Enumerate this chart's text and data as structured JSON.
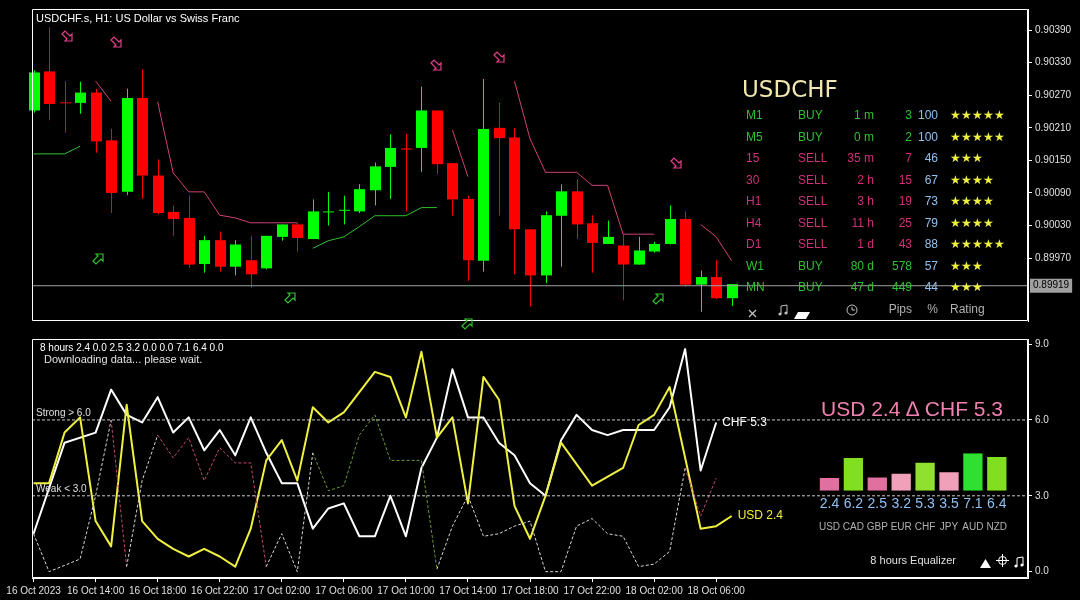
{
  "chart_data": [
    {
      "type": "candlestick",
      "title": "USDCHF.s, H1:  US Dollar vs Swiss Franc",
      "x": [
        "2023-10-16T10:00",
        "2023-10-16T11:00",
        "2023-10-16T12:00",
        "2023-10-16T13:00",
        "2023-10-16T14:00",
        "2023-10-16T15:00",
        "2023-10-16T16:00",
        "2023-10-16T17:00",
        "2023-10-16T18:00",
        "2023-10-16T19:00",
        "2023-10-16T20:00",
        "2023-10-16T21:00",
        "2023-10-16T22:00",
        "2023-10-16T23:00",
        "2023-10-17T00:00",
        "2023-10-17T01:00",
        "2023-10-17T02:00",
        "2023-10-17T03:00",
        "2023-10-17T04:00",
        "2023-10-17T05:00",
        "2023-10-17T06:00",
        "2023-10-17T07:00",
        "2023-10-17T08:00",
        "2023-10-17T09:00",
        "2023-10-17T10:00",
        "2023-10-17T11:00",
        "2023-10-17T12:00",
        "2023-10-17T13:00",
        "2023-10-17T14:00",
        "2023-10-17T15:00",
        "2023-10-17T16:00",
        "2023-10-17T17:00",
        "2023-10-17T18:00",
        "2023-10-17T19:00",
        "2023-10-17T20:00",
        "2023-10-17T21:00",
        "2023-10-17T22:00",
        "2023-10-17T23:00",
        "2023-10-18T00:00",
        "2023-10-18T01:00",
        "2023-10-18T02:00",
        "2023-10-18T03:00",
        "2023-10-18T04:00",
        "2023-10-18T05:00",
        "2023-10-18T06:00",
        "2023-10-18T07:00"
      ],
      "ohlc": [
        [
          0.90242,
          0.90316,
          0.90238,
          0.90312
        ],
        [
          0.90314,
          0.90395,
          0.90224,
          0.90254
        ],
        [
          0.90257,
          0.90296,
          0.90201,
          0.90256
        ],
        [
          0.90256,
          0.90295,
          0.90236,
          0.90275
        ],
        [
          0.90275,
          0.90282,
          0.90164,
          0.90185
        ],
        [
          0.90187,
          0.90208,
          0.90053,
          0.9009
        ],
        [
          0.90092,
          0.90282,
          0.90086,
          0.90265
        ],
        [
          0.90265,
          0.90318,
          0.90079,
          0.90122
        ],
        [
          0.90122,
          0.90152,
          0.90051,
          0.90053
        ],
        [
          0.90055,
          0.90067,
          0.90011,
          0.90042
        ],
        [
          0.90044,
          0.90085,
          0.89952,
          0.89958
        ],
        [
          0.89959,
          0.90011,
          0.89943,
          0.90003
        ],
        [
          0.90003,
          0.90019,
          0.89945,
          0.89954
        ],
        [
          0.89954,
          0.90003,
          0.89938,
          0.89995
        ],
        [
          0.89966,
          0.90011,
          0.89915,
          0.8994
        ],
        [
          0.89951,
          0.90011,
          0.89949,
          0.90011
        ],
        [
          0.90009,
          0.90032,
          0.90002,
          0.90032
        ],
        [
          0.90032,
          0.90035,
          0.89982,
          0.90007
        ],
        [
          0.90005,
          0.90078,
          0.90005,
          0.90056
        ],
        [
          0.90056,
          0.90092,
          0.9003,
          0.90056
        ],
        [
          0.90058,
          0.90085,
          0.90032,
          0.90059
        ],
        [
          0.90056,
          0.90106,
          0.90053,
          0.90097
        ],
        [
          0.90095,
          0.90146,
          0.90067,
          0.90139
        ],
        [
          0.90138,
          0.90198,
          0.90079,
          0.90173
        ],
        [
          0.90172,
          0.90199,
          0.90056,
          0.9017
        ],
        [
          0.90173,
          0.90286,
          0.90129,
          0.90242
        ],
        [
          0.90242,
          0.90242,
          0.90125,
          0.90143
        ],
        [
          0.90145,
          0.90145,
          0.90048,
          0.90078
        ],
        [
          0.90079,
          0.90085,
          0.89928,
          0.89966
        ],
        [
          0.89965,
          0.903,
          0.89945,
          0.90208
        ],
        [
          0.9021,
          0.90256,
          0.90048,
          0.90191
        ],
        [
          0.90192,
          0.9021,
          0.8994,
          0.90023
        ],
        [
          0.90023,
          0.90023,
          0.8988,
          0.89938
        ],
        [
          0.89938,
          0.90056,
          0.89924,
          0.90049
        ],
        [
          0.90048,
          0.90106,
          0.89954,
          0.90093
        ],
        [
          0.90093,
          0.90115,
          0.90005,
          0.90032
        ],
        [
          0.90034,
          0.90049,
          0.89943,
          0.89998
        ],
        [
          0.89996,
          0.90039,
          0.89996,
          0.90009
        ],
        [
          0.89993,
          0.90016,
          0.89892,
          0.89958
        ],
        [
          0.89958,
          0.90009,
          0.89958,
          0.89984
        ],
        [
          0.89982,
          0.9,
          0.8998,
          0.89996
        ],
        [
          0.89996,
          0.90067,
          0.89995,
          0.90042
        ],
        [
          0.90042,
          0.90056,
          0.89917,
          0.89921
        ],
        [
          0.89921,
          0.89947,
          0.89871,
          0.89935
        ],
        [
          0.89935,
          0.89966,
          0.89894,
          0.89896
        ],
        [
          0.89896,
          0.89922,
          0.89882,
          0.89922
        ]
      ],
      "series": [
        {
          "type": "line",
          "color": "#d0407a",
          "x": [
            "2023-10-16T14:00",
            "2023-10-16T15:00",
            "2023-10-16T15:30",
            "2023-10-16T17:00",
            "2023-10-16T18:00",
            "2023-10-16T19:00",
            "2023-10-16T20:00",
            "2023-10-16T21:00",
            "2023-10-16T22:00",
            "2023-10-16T23:00",
            "2023-10-17T00:00",
            "2023-10-17T01:00",
            "2023-10-17T02:00",
            "2023-10-17T03:00",
            "2023-10-17T03:30",
            "2023-10-17T13:00",
            "2023-10-17T14:00",
            "2023-10-17T14:30",
            "2023-10-17T17:00",
            "2023-10-17T18:00",
            "2023-10-17T19:00",
            "2023-10-17T20:00",
            "2023-10-17T21:00",
            "2023-10-17T22:00",
            "2023-10-17T23:00",
            "2023-10-18T00:00",
            "2023-10-18T01:00",
            "2023-10-18T02:00",
            "2023-10-18T03:00",
            "2023-10-18T04:00",
            "2023-10-18T05:00",
            "2023-10-18T06:00",
            "2023-10-18T07:00"
          ],
          "values": [
            0.90296,
            0.90259,
            null,
            null,
            0.90258,
            0.90127,
            0.90092,
            0.90092,
            0.90049,
            0.90044,
            0.90035,
            0.90035,
            0.90035,
            0.90035,
            null,
            0.90206,
            0.9012,
            null,
            0.90296,
            0.9019,
            0.90128,
            0.90128,
            0.90128,
            0.90104,
            0.90104,
            0.90014,
            0.90014,
            0.90014,
            null,
            null,
            0.90032,
            0.90009,
            0.89965
          ]
        },
        {
          "type": "line",
          "color": "#30c030",
          "x": [
            "2023-10-16T10:00",
            "2023-10-16T11:00",
            "2023-10-16T12:00",
            "2023-10-16T13:00",
            "2023-10-16T13:30",
            "2023-10-17T04:00",
            "2023-10-17T05:00",
            "2023-10-17T06:00",
            "2023-10-17T07:00",
            "2023-10-17T08:00",
            "2023-10-17T09:00",
            "2023-10-17T10:00",
            "2023-10-17T11:00",
            "2023-10-17T12:00"
          ],
          "values": [
            0.90162,
            0.90162,
            0.90162,
            0.90176,
            null,
            0.89988,
            0.90002,
            0.90009,
            0.90028,
            0.90048,
            0.90048,
            0.90048,
            0.90063,
            0.90063
          ]
        }
      ],
      "xlim": [
        "2023-10-16T09:54",
        "2023-10-19T02:06"
      ],
      "ylim": [
        0.89854,
        0.90429
      ],
      "yticks": [
        {
          "value": 0.9039,
          "label": "0.90390"
        },
        {
          "value": 0.9033,
          "label": "0.90330"
        },
        {
          "value": 0.9027,
          "label": "0.90270"
        },
        {
          "value": 0.9021,
          "label": "0.90210"
        },
        {
          "value": 0.9015,
          "label": "0.90150"
        },
        {
          "value": 0.9009,
          "label": "0.90090"
        },
        {
          "value": 0.9003,
          "label": "0.90030"
        },
        {
          "value": 0.8997,
          "label": "0.89970"
        }
      ],
      "ref_lines": [
        {
          "axis": "y",
          "value": 0.89919,
          "label": "0.89919",
          "color": "#a0a0a0"
        }
      ],
      "tick_labels": "y",
      "marker": "none",
      "legend": false
    },
    {
      "type": "other",
      "title": "USDCHF",
      "annotations": [
        "M1  BUY  1 m  3  100  ★★★★★",
        "M5  BUY  0 m  2  100  ★★★★★",
        "15  SELL  35 m  7  46  ★★★",
        "30  SELL  2 h  15  67  ★★★★",
        "H1  SELL  3 h  19  73  ★★★★",
        "H4  SELL  11 h  25  79  ★★★★",
        "D1  SELL  1 d  43  88  ★★★★★",
        "W1  BUY  80 d  578  57  ★★★",
        "MN  BUY  47 d  449  44  ★★★",
        "Pips  %  Rating"
      ],
      "colors": [
        "#30c030",
        "#30c030",
        "#d0307a",
        "#d0307a",
        "#d0307a",
        "#d0307a",
        "#d0307a",
        "#30c030",
        "#30c030",
        "#b0b0b0"
      ]
    },
    {
      "type": "line",
      "subtitle": "8 hours 2.4 0.0 2.5 3.2 0.0 0.0 7.1 6.4 0.0",
      "annotations": [
        "Downloading data... please wait."
      ],
      "series": [
        {
          "line_style": "dashed",
          "color": "#d8d8d8",
          "x": [
            "2023-10-16T10:00",
            "2023-10-16T11:00",
            "2023-10-16T13:00",
            "2023-10-16T14:00",
            "2023-10-16T15:00",
            "2023-10-16T15:30",
            "2023-10-16T16:00",
            "2023-10-16T17:00",
            "2023-10-16T18:00",
            "2023-10-16T21:30",
            "2023-10-17T01:00",
            "2023-10-17T02:00",
            "2023-10-17T03:00",
            "2023-10-17T04:00",
            "2023-10-17T08:00",
            "2023-10-17T12:00",
            "2023-10-17T13:00",
            "2023-10-17T14:00",
            "2023-10-17T15:00",
            "2023-10-17T16:00",
            "2023-10-17T17:00",
            "2023-10-17T18:00",
            "2023-10-17T19:00",
            "2023-10-17T20:00",
            "2023-10-17T21:00",
            "2023-10-17T22:00",
            "2023-10-17T23:00",
            "2023-10-18T00:00",
            "2023-10-18T01:00",
            "2023-10-18T02:00",
            "2023-10-18T03:00",
            "2023-10-18T04:00"
          ],
          "values": [
            1.5,
            0.0,
            0.5,
            3.0,
            6.0,
            null,
            0.2,
            3.6,
            5.4,
            null,
            0.2,
            1.5,
            0.0,
            4.7,
            null,
            0.1,
            1.8,
            3.0,
            1.4,
            1.5,
            1.8,
            2.0,
            0.0,
            0.0,
            1.8,
            2.1,
            1.5,
            1.4,
            0.2,
            0.3,
            0.8,
            4.1
          ]
        },
        {
          "line_style": "dashed",
          "color": "#c84a6a",
          "x": [
            "2023-10-16T15:00",
            "2023-10-16T16:00",
            "2023-10-16T16:30",
            "2023-10-16T18:00",
            "2023-10-16T19:00",
            "2023-10-16T20:00",
            "2023-10-16T21:00",
            "2023-10-16T22:00",
            "2023-10-16T23:00",
            "2023-10-17T00:00",
            "2023-10-17T01:00",
            "2023-10-17T14:00",
            "2023-10-18T04:00",
            "2023-10-18T05:00",
            "2023-10-18T06:00"
          ],
          "values": [
            6.0,
            0.2,
            null,
            5.4,
            4.5,
            5.3,
            3.6,
            4.9,
            4.3,
            4.3,
            0.2,
            null,
            4.1,
            2.2,
            3.7
          ]
        },
        {
          "line_style": "dashed",
          "color": "#6a9a3a",
          "x": [
            "2023-10-17T04:00",
            "2023-10-17T05:00",
            "2023-10-17T06:00",
            "2023-10-17T07:00",
            "2023-10-17T08:00",
            "2023-10-17T09:00",
            "2023-10-17T10:00",
            "2023-10-17T11:00",
            "2023-10-17T12:00"
          ],
          "values": [
            4.7,
            3.2,
            3.4,
            5.4,
            6.2,
            4.4,
            4.4,
            4.4,
            0.1
          ]
        },
        {
          "name": "USD 2.4",
          "color": "#f0f040",
          "x": [
            "2023-10-16T10:00",
            "2023-10-16T11:00",
            "2023-10-16T12:00",
            "2023-10-16T13:00",
            "2023-10-16T14:00",
            "2023-10-16T15:00",
            "2023-10-16T16:00",
            "2023-10-16T17:00",
            "2023-10-16T18:00",
            "2023-10-16T19:00",
            "2023-10-16T20:00",
            "2023-10-16T21:00",
            "2023-10-16T22:00",
            "2023-10-16T23:00",
            "2023-10-17T00:00",
            "2023-10-17T01:00",
            "2023-10-17T02:00",
            "2023-10-17T03:00",
            "2023-10-17T04:00",
            "2023-10-17T05:00",
            "2023-10-17T06:00",
            "2023-10-17T07:00",
            "2023-10-17T08:00",
            "2023-10-17T09:00",
            "2023-10-17T10:00",
            "2023-10-17T11:00",
            "2023-10-17T12:00",
            "2023-10-17T13:00",
            "2023-10-17T14:00",
            "2023-10-17T15:00",
            "2023-10-17T16:00",
            "2023-10-17T17:00",
            "2023-10-17T18:00",
            "2023-10-17T19:00",
            "2023-10-17T20:00",
            "2023-10-17T22:00",
            "2023-10-18T00:00",
            "2023-10-18T01:00",
            "2023-10-18T02:00",
            "2023-10-18T03:00",
            "2023-10-18T05:00",
            "2023-10-18T06:00",
            "2023-10-18T07:00"
          ],
          "values": [
            3.5,
            3.5,
            5.5,
            6.1,
            2.0,
            1.0,
            6.6,
            2.0,
            1.3,
            0.9,
            0.6,
            0.9,
            0.6,
            0.2,
            1.7,
            4.4,
            5.2,
            3.6,
            6.5,
            5.9,
            6.3,
            7.1,
            7.9,
            7.7,
            6.1,
            8.7,
            5.3,
            6.1,
            2.7,
            7.7,
            6.8,
            2.6,
            1.3,
            3.0,
            5.1,
            3.4,
            4.1,
            5.8,
            6.2,
            7.3,
            1.7,
            1.8,
            2.2
          ]
        },
        {
          "name": "CHF 5.3",
          "color": "#ffffff",
          "x": [
            "2023-10-16T10:00",
            "2023-10-16T12:00",
            "2023-10-16T14:00",
            "2023-10-16T15:00",
            "2023-10-16T16:00",
            "2023-10-16T17:00",
            "2023-10-16T18:00",
            "2023-10-16T19:00",
            "2023-10-16T20:00",
            "2023-10-16T21:00",
            "2023-10-16T22:00",
            "2023-10-16T23:00",
            "2023-10-17T00:00",
            "2023-10-17T01:00",
            "2023-10-17T02:00",
            "2023-10-17T03:00",
            "2023-10-17T04:00",
            "2023-10-17T05:00",
            "2023-10-17T06:00",
            "2023-10-17T07:00",
            "2023-10-17T08:00",
            "2023-10-17T09:00",
            "2023-10-17T10:00",
            "2023-10-17T11:00",
            "2023-10-17T12:00",
            "2023-10-17T13:00",
            "2023-10-17T14:00",
            "2023-10-17T15:00",
            "2023-10-17T16:00",
            "2023-10-17T17:00",
            "2023-10-17T18:00",
            "2023-10-17T19:00",
            "2023-10-17T20:00",
            "2023-10-17T21:00",
            "2023-10-17T22:00",
            "2023-10-17T23:00",
            "2023-10-18T00:00",
            "2023-10-18T01:00",
            "2023-10-18T02:00",
            "2023-10-18T03:00",
            "2023-10-18T04:00",
            "2023-10-18T05:00",
            "2023-10-18T06:00"
          ],
          "values": [
            1.5,
            5.1,
            5.5,
            7.2,
            6.2,
            5.9,
            6.9,
            5.5,
            6.1,
            4.8,
            5.6,
            4.6,
            6.1,
            4.7,
            3.5,
            3.5,
            1.7,
            2.5,
            2.7,
            1.4,
            1.4,
            3.0,
            1.4,
            4.1,
            5.3,
            8.0,
            6.1,
            6.1,
            5.1,
            4.6,
            3.5,
            3.0,
            5.2,
            6.2,
            5.6,
            5.4,
            5.6,
            5.6,
            5.6,
            6.5,
            8.8,
            4.0,
            5.9
          ]
        }
      ],
      "xlim": [
        "2023-10-16T09:54",
        "2023-10-19T02:06"
      ],
      "ylim": [
        -0.25,
        9.2
      ],
      "xticks": [
        {
          "value": "2023-10-16T10:00",
          "label": "16 Oct 2023"
        },
        {
          "value": "2023-10-16T14:00",
          "label": "16 Oct 14:00"
        },
        {
          "value": "2023-10-16T18:00",
          "label": "16 Oct 18:00"
        },
        {
          "value": "2023-10-16T22:00",
          "label": "16 Oct 22:00"
        },
        {
          "value": "2023-10-17T02:00",
          "label": "17 Oct 02:00"
        },
        {
          "value": "2023-10-17T06:00",
          "label": "17 Oct 06:00"
        },
        {
          "value": "2023-10-17T10:00",
          "label": "17 Oct 10:00"
        },
        {
          "value": "2023-10-17T14:00",
          "label": "17 Oct 14:00"
        },
        {
          "value": "2023-10-17T18:00",
          "label": "17 Oct 18:00"
        },
        {
          "value": "2023-10-17T22:00",
          "label": "17 Oct 22:00"
        },
        {
          "value": "2023-10-18T02:00",
          "label": "18 Oct 02:00"
        },
        {
          "value": "2023-10-18T06:00",
          "label": "18 Oct 06:00"
        }
      ],
      "yticks": [
        {
          "value": 0,
          "label": "0.0"
        },
        {
          "value": 3,
          "label": "3.0"
        },
        {
          "value": 6,
          "label": "6.0"
        },
        {
          "value": 9,
          "label": "9.0"
        }
      ],
      "ref_lines": [
        {
          "axis": "y",
          "value": 6,
          "label": "Strong > 6.0",
          "color": "#c8c8c8",
          "line_style": "dashed"
        },
        {
          "axis": "y",
          "value": 3,
          "label": "Weak < 3.0",
          "color": "#c8c8c8",
          "line_style": "dashed"
        }
      ],
      "marker": "none",
      "legend": false
    },
    {
      "type": "bar",
      "title": "USD 2.4 ∆ CHF 5.3",
      "xlabel": "8 hours Equalizer",
      "categories": [
        "USD",
        "CAD",
        "GBP",
        "EUR",
        "CHF",
        "JPY",
        "AUD",
        "NZD"
      ],
      "values": [
        2.4,
        6.2,
        2.5,
        3.2,
        5.3,
        3.5,
        7.1,
        6.4
      ],
      "colors": [
        "#e070a0",
        "#80e020",
        "#e070a0",
        "#f0a0b8",
        "#90e030",
        "#f0a0b8",
        "#30e030",
        "#80e020"
      ],
      "data_labels": true,
      "legend": false
    }
  ]
}
